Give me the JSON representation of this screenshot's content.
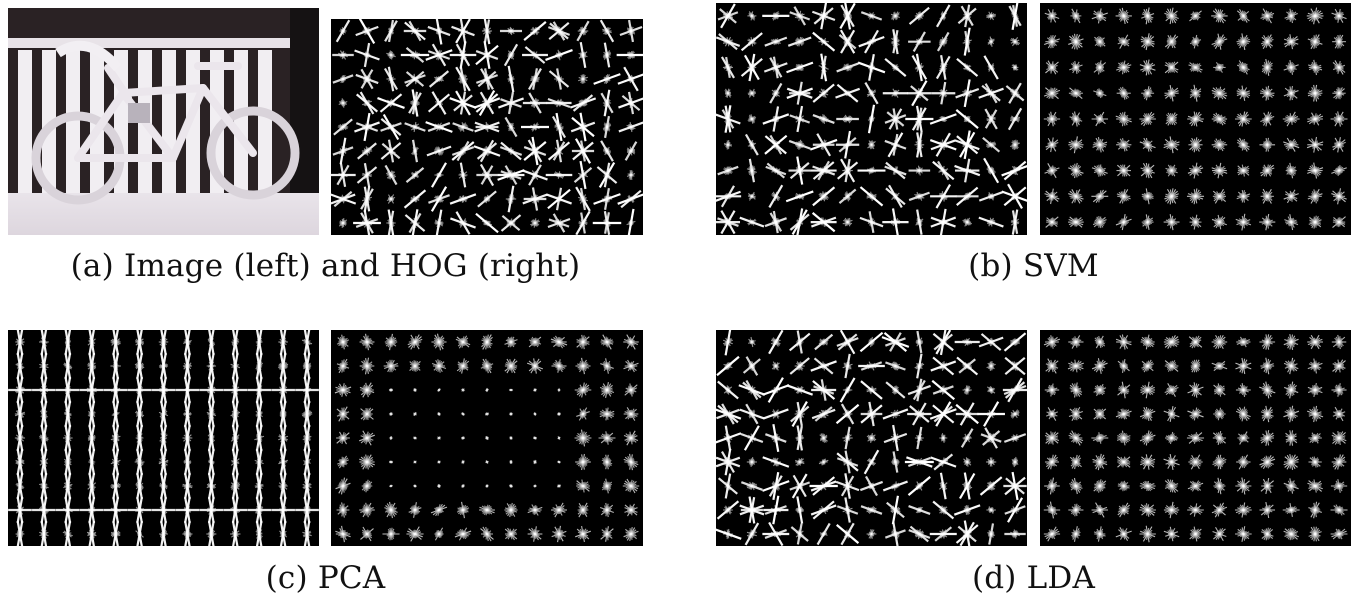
{
  "figure": {
    "subfigures": [
      {
        "id": "a",
        "caption": "(a) Image (left) and HOG (right)",
        "left_kind": "photo",
        "right_kind": "hog",
        "left_pattern": "hog",
        "right_pattern": "hog"
      },
      {
        "id": "b",
        "caption": "(b) SVM",
        "left_kind": "hog",
        "right_kind": "hog",
        "left_pattern": "mixed",
        "right_pattern": "stars"
      },
      {
        "id": "c",
        "caption": "(c) PCA",
        "left_kind": "hog",
        "right_kind": "hog",
        "left_pattern": "vertical",
        "right_pattern": "pca_stars"
      },
      {
        "id": "d",
        "caption": "(d) LDA",
        "left_kind": "hog",
        "right_kind": "hog",
        "left_pattern": "mixed",
        "right_pattern": "stars"
      }
    ],
    "colors": {
      "panel_bg": "#000000",
      "stroke": "#ffffff",
      "caption": "#111111"
    }
  }
}
